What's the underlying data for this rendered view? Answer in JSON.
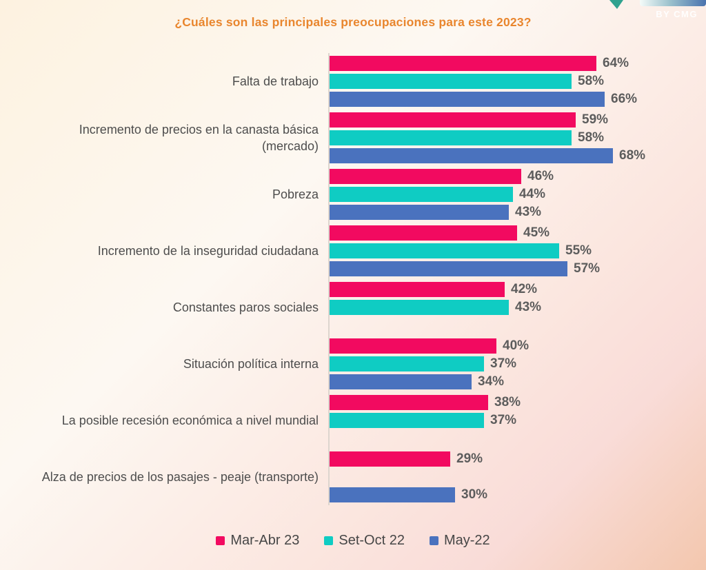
{
  "logo": {
    "text": "BY CMG"
  },
  "chart_data": {
    "type": "bar",
    "orientation": "horizontal",
    "title": "¿Cuáles son las principales preocupaciones para este 2023?",
    "title_color": "#e9862e",
    "value_suffix": "%",
    "xlim": [
      0,
      70
    ],
    "grid": false,
    "legend_position": "bottom",
    "categories": [
      "Falta de trabajo",
      "Incremento de precios en la canasta básica\n(mercado)",
      "Pobreza",
      "Incremento de la inseguridad ciudadana",
      "Constantes paros sociales",
      "Situación política interna",
      "La posible recesión económica a nivel mundial",
      "Alza de precios de los pasajes - peaje (transporte)"
    ],
    "series": [
      {
        "name": "Mar-Abr 23",
        "color": "#f20a60",
        "values": [
          64,
          59,
          46,
          45,
          42,
          40,
          38,
          29
        ]
      },
      {
        "name": "Set-Oct 22",
        "color": "#0fccc3",
        "values": [
          58,
          58,
          44,
          55,
          43,
          37,
          37,
          null
        ]
      },
      {
        "name": "May-22",
        "color": "#4a72be",
        "values": [
          66,
          68,
          43,
          57,
          null,
          34,
          null,
          30
        ]
      }
    ]
  }
}
